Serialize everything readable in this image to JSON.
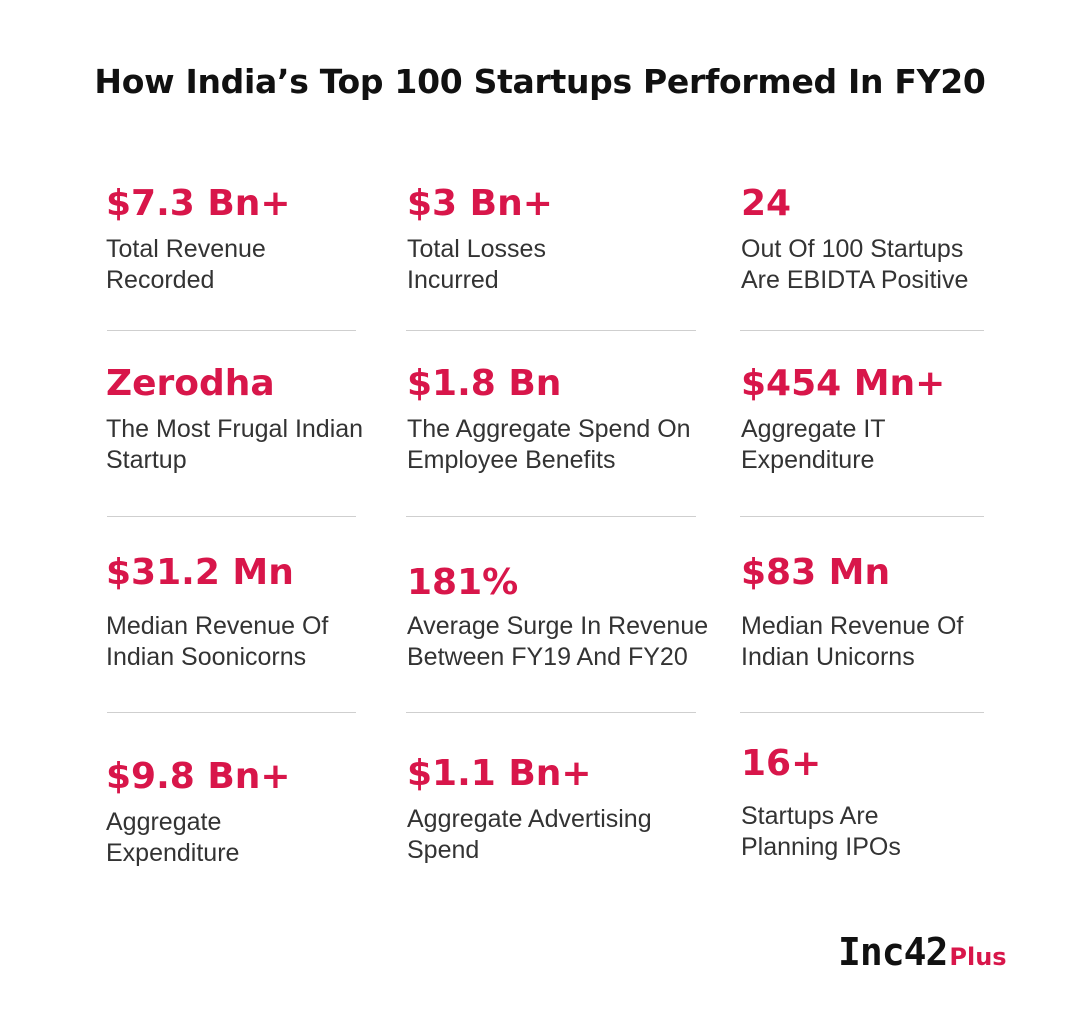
{
  "title": "How India’s Top 100 Startups Performed In FY20",
  "accent_color": "#d8164a",
  "stats": [
    {
      "value": "$7.3 Bn+",
      "label": "Total Revenue\n Recorded"
    },
    {
      "value": "$3 Bn+",
      "label": "Total Losses\nIncurred"
    },
    {
      "value": "24",
      "label": "Out Of 100 Startups\nAre EBIDTA Positive"
    },
    {
      "value": "Zerodha",
      "label": "The Most Frugal Indian\nStartup"
    },
    {
      "value": "$1.8 Bn",
      "label": "The Aggregate Spend On\nEmployee Benefits"
    },
    {
      "value": "$454 Mn+",
      "label": "Aggregate IT\nExpenditure"
    },
    {
      "value": "$31.2 Mn",
      "label": "Median Revenue Of\nIndian Soonicorns"
    },
    {
      "value": "181%",
      "label": "Average Surge In Revenue\nBetween FY19 And FY20"
    },
    {
      "value": "$83 Mn",
      "label": "Median Revenue Of\nIndian Unicorns"
    },
    {
      "value": "$9.8 Bn+",
      "label": "Aggregate\nExpenditure"
    },
    {
      "value": "$1.1 Bn+",
      "label": "Aggregate Advertising\nSpend"
    },
    {
      "value": "16+",
      "label": "Startups Are\nPlanning IPOs"
    }
  ],
  "logo": {
    "main": "Inc42",
    "suffix": "Plus"
  }
}
